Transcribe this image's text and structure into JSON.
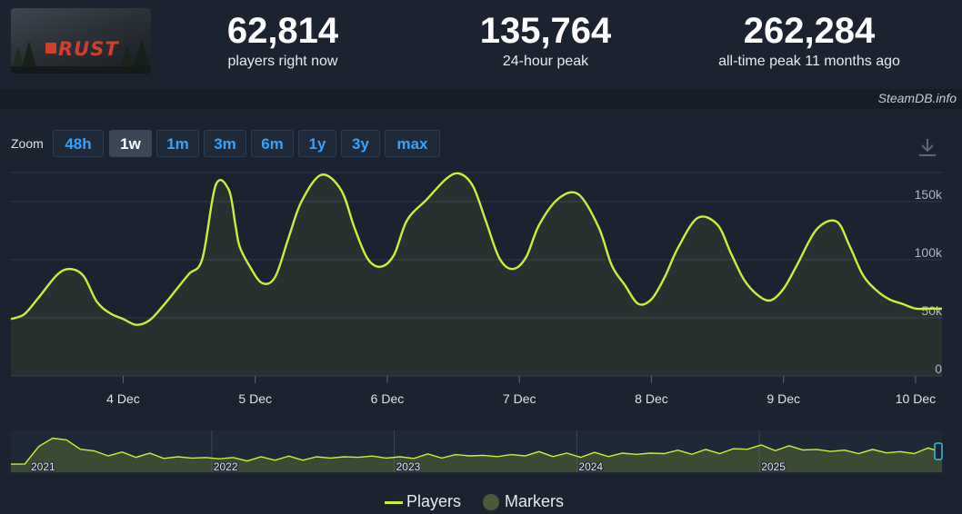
{
  "header": {
    "game_logo_text": "RUST",
    "stats": [
      {
        "value": "62,814",
        "label": "players right now"
      },
      {
        "value": "135,764",
        "label": "24-hour peak"
      },
      {
        "value": "262,284",
        "label": "all-time peak 11 months ago"
      }
    ],
    "credit": "SteamDB.info"
  },
  "zoom": {
    "label": "Zoom",
    "buttons": [
      "48h",
      "1w",
      "1m",
      "3m",
      "6m",
      "1y",
      "3y",
      "max"
    ],
    "active": "1w"
  },
  "colors": {
    "line": "#c8f03c",
    "grid": "#2f3a48",
    "background": "#1b2330",
    "marker": "#4a5a3a",
    "accent": "#38a3ff"
  },
  "icons": {
    "download": "download-icon"
  },
  "chart_data": {
    "type": "line",
    "title": "",
    "xlabel": "",
    "ylabel": "",
    "ylim": [
      0,
      175000
    ],
    "yticks": [
      0,
      50000,
      100000,
      150000
    ],
    "ytick_labels": [
      "0",
      "50k",
      "100k",
      "150k"
    ],
    "xticks": [
      "4 Dec",
      "5 Dec",
      "6 Dec",
      "7 Dec",
      "8 Dec",
      "9 Dec",
      "10 Dec"
    ],
    "x_unit": "days since 3 Dec 00:00",
    "xlim": [
      0.15,
      7.2
    ],
    "grid": true,
    "legend_position": "bottom-center",
    "series": [
      {
        "name": "Players",
        "x": [
          0.15,
          0.25,
          0.35,
          0.5,
          0.6,
          0.7,
          0.8,
          0.9,
          1.0,
          1.1,
          1.2,
          1.3,
          1.4,
          1.5,
          1.6,
          1.7,
          1.8,
          1.85,
          1.88,
          1.95,
          2.05,
          2.15,
          2.25,
          2.35,
          2.5,
          2.65,
          2.75,
          2.85,
          2.95,
          3.05,
          3.15,
          3.3,
          3.45,
          3.55,
          3.65,
          3.75,
          3.85,
          3.95,
          4.05,
          4.15,
          4.3,
          4.45,
          4.6,
          4.7,
          4.8,
          4.9,
          5.0,
          5.1,
          5.2,
          5.35,
          5.5,
          5.6,
          5.7,
          5.8,
          5.9,
          6.0,
          6.1,
          6.25,
          6.4,
          6.5,
          6.6,
          6.7,
          6.8,
          6.9,
          7.0,
          7.1,
          7.2
        ],
        "values": [
          49000,
          53000,
          66000,
          87000,
          92000,
          86000,
          64000,
          54000,
          49000,
          44000,
          48000,
          60000,
          74000,
          88000,
          101000,
          164000,
          160000,
          130000,
          112000,
          96000,
          80000,
          85000,
          118000,
          150000,
          173000,
          160000,
          128000,
          101000,
          94000,
          104000,
          134000,
          152000,
          170000,
          174000,
          163000,
          132000,
          101000,
          92000,
          102000,
          130000,
          153000,
          156000,
          128000,
          95000,
          78000,
          62000,
          66000,
          85000,
          110000,
          136000,
          130000,
          106000,
          83000,
          70000,
          65000,
          75000,
          95000,
          126000,
          133000,
          112000,
          87000,
          74000,
          66000,
          62000,
          58000,
          58000,
          58000
        ]
      }
    ],
    "navigator": {
      "year_labels": [
        "2021",
        "2022",
        "2023",
        "2024",
        "2025"
      ],
      "values": [
        22,
        30,
        70,
        100,
        88,
        70,
        58,
        52,
        55,
        48,
        52,
        45,
        42,
        46,
        40,
        44,
        40,
        38,
        42,
        40,
        44,
        40,
        42,
        46,
        42,
        48,
        44,
        46,
        42,
        45,
        50,
        46,
        48,
        52,
        46,
        50,
        48,
        52,
        56,
        50,
        52,
        48,
        54,
        50,
        52,
        56,
        52,
        58,
        60,
        56,
        62,
        58,
        64,
        70,
        74,
        66,
        72,
        68,
        62,
        64,
        60,
        58,
        62,
        60,
        56,
        58,
        66,
        62
      ]
    },
    "legend": [
      "Players",
      "Markers"
    ]
  }
}
